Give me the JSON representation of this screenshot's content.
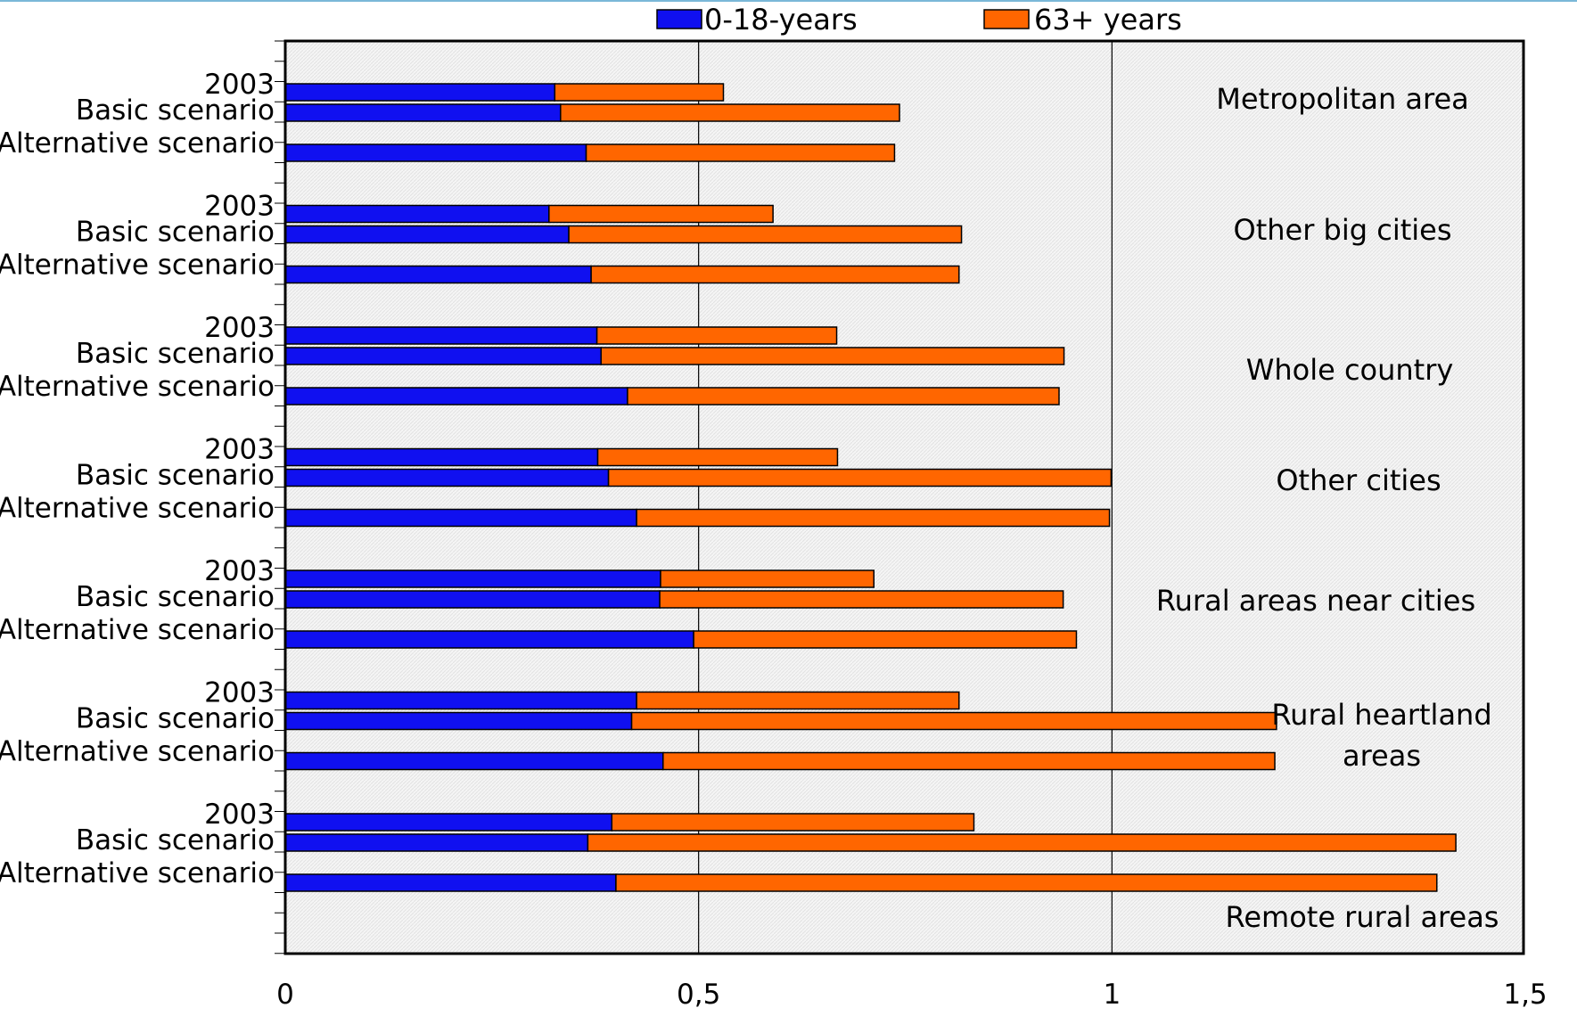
{
  "chart_data": {
    "type": "bar",
    "orientation": "horizontal",
    "stacked": true,
    "title": "",
    "xlabel": "",
    "ylabel": "",
    "xlim": [
      0,
      1.5
    ],
    "x_ticks": [
      0,
      0.5,
      1,
      1.5
    ],
    "x_tick_labels": [
      "0",
      "0,5",
      "1",
      "1,5"
    ],
    "grid": "vertical lines at 0,5 and 1",
    "legend_position": "top",
    "colors": {
      "0-18-years": "#1010f0",
      "63+ years": "#ff6600",
      "plot_background": "#f5f5f5"
    },
    "series": [
      {
        "name": "0-18-years",
        "color": "#1010f0"
      },
      {
        "name": "63+ years",
        "color": "#ff6600"
      }
    ],
    "groups": [
      {
        "label": "Metropolitan area",
        "bars": [
          {
            "label": "2003",
            "values": [
              0.326,
              0.204
            ]
          },
          {
            "label": "Basic scenario",
            "values": [
              0.333,
              0.41
            ]
          },
          {
            "label": "Alternative scenario",
            "values": [
              0.364,
              0.373
            ]
          }
        ]
      },
      {
        "label": "Other big cities",
        "bars": [
          {
            "label": "2003",
            "values": [
              0.319,
              0.271
            ]
          },
          {
            "label": "Basic scenario",
            "values": [
              0.343,
              0.475
            ]
          },
          {
            "label": "Alternative scenario",
            "values": [
              0.37,
              0.445
            ]
          }
        ]
      },
      {
        "label": "Whole country",
        "bars": [
          {
            "label": "2003",
            "values": [
              0.377,
              0.29
            ]
          },
          {
            "label": "Basic scenario",
            "values": [
              0.382,
              0.56
            ]
          },
          {
            "label": "Alternative scenario",
            "values": [
              0.414,
              0.522
            ]
          }
        ]
      },
      {
        "label": "Other cities",
        "bars": [
          {
            "label": "2003",
            "values": [
              0.378,
              0.29
            ]
          },
          {
            "label": "Basic scenario",
            "values": [
              0.391,
              0.608
            ]
          },
          {
            "label": "Alternative scenario",
            "values": [
              0.425,
              0.572
            ]
          }
        ]
      },
      {
        "label": "Rural areas near cities",
        "bars": [
          {
            "label": "2003",
            "values": [
              0.454,
              0.258
            ]
          },
          {
            "label": "Basic scenario",
            "values": [
              0.453,
              0.488
            ]
          },
          {
            "label": "Alternative scenario",
            "values": [
              0.494,
              0.463
            ]
          }
        ]
      },
      {
        "label": "Rural heartland areas",
        "bars": [
          {
            "label": "2003",
            "values": [
              0.425,
              0.39
            ]
          },
          {
            "label": "Basic scenario",
            "values": [
              0.419,
              0.78
            ]
          },
          {
            "label": "Alternative scenario",
            "values": [
              0.457,
              0.74
            ]
          }
        ]
      },
      {
        "label": "Remote rural areas",
        "bars": [
          {
            "label": "2003",
            "values": [
              0.395,
              0.438
            ]
          },
          {
            "label": "Basic scenario",
            "values": [
              0.366,
              1.05
            ]
          },
          {
            "label": "Alternative scenario",
            "values": [
              0.4,
              0.993
            ]
          }
        ]
      }
    ]
  }
}
